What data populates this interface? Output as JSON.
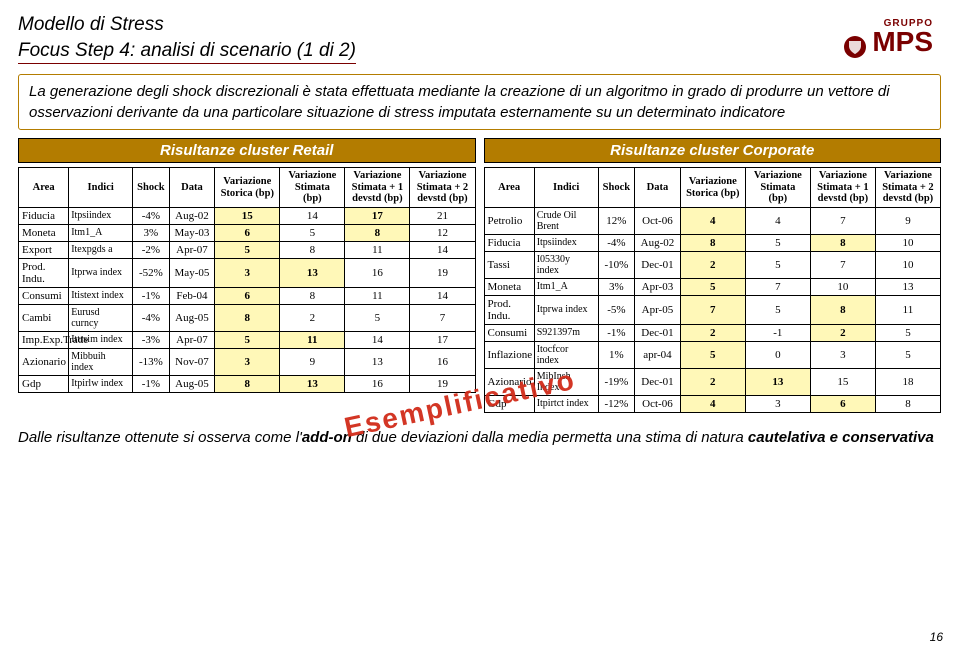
{
  "title_line1": "Modello di Stress",
  "title_line2": "Focus Step 4: analisi di scenario (1 di 2)",
  "logo": {
    "small": "GRUPPO",
    "big": "MPS"
  },
  "description": "La generazione degli shock discrezionali è stata effettuata mediante la creazione di un algoritmo in grado di produrre un vettore di osservazioni derivante da una particolare situazione di stress imputata esternamente su un determinato indicatore",
  "cluster_left_title": "Risultanze cluster Retail",
  "cluster_right_title": "Risultanze cluster Corporate",
  "headers": [
    "Area",
    "Indici",
    "Shock",
    "Data",
    "Variazione Storica (bp)",
    "Variazione Stimata (bp)",
    "Variazione Stimata + 1 devstd (bp)",
    "Variazione Stimata + 2 devstd (bp)"
  ],
  "retail_rows": [
    {
      "area": "Fiducia",
      "indici": "Itpsiindex",
      "shock": "-4%",
      "data": "Aug-02",
      "v": [
        [
          "15",
          true
        ],
        [
          "14",
          false
        ],
        [
          "17",
          true
        ],
        [
          "21",
          false
        ]
      ]
    },
    {
      "area": "Moneta",
      "indici": "Itm1_A",
      "shock": "3%",
      "data": "May-03",
      "v": [
        [
          "6",
          true
        ],
        [
          "5",
          false
        ],
        [
          "8",
          true
        ],
        [
          "12",
          false
        ]
      ]
    },
    {
      "area": "Export",
      "indici": "Itexpgds a",
      "shock": "-2%",
      "data": "Apr-07",
      "v": [
        [
          "5",
          true
        ],
        [
          "8",
          false
        ],
        [
          "11",
          false
        ],
        [
          "14",
          false
        ]
      ]
    },
    {
      "area": "Prod. Indu.",
      "indici": "Itprwa index",
      "shock": "-52%",
      "data": "May-05",
      "v": [
        [
          "3",
          true
        ],
        [
          "13",
          true
        ],
        [
          "16",
          false
        ],
        [
          "19",
          false
        ]
      ]
    },
    {
      "area": "Consumi",
      "indici": "Itistext index",
      "shock": "-1%",
      "data": "Feb-04",
      "v": [
        [
          "6",
          true
        ],
        [
          "8",
          false
        ],
        [
          "11",
          false
        ],
        [
          "14",
          false
        ]
      ]
    },
    {
      "area": "Cambi",
      "indici": "Eurusd\ncurncy",
      "shock": "-4%",
      "data": "Aug-05",
      "v": [
        [
          "8",
          true
        ],
        [
          "2",
          false
        ],
        [
          "5",
          false
        ],
        [
          "7",
          false
        ]
      ]
    },
    {
      "area": "Imp.Exp.Trade",
      "indici": "Ittrsim index",
      "shock": "-3%",
      "data": "Apr-07",
      "v": [
        [
          "5",
          true
        ],
        [
          "11",
          true
        ],
        [
          "14",
          false
        ],
        [
          "17",
          false
        ]
      ]
    },
    {
      "area": "Azionario",
      "indici": "Mibbuih\nindex",
      "shock": "-13%",
      "data": "Nov-07",
      "v": [
        [
          "3",
          true
        ],
        [
          "9",
          false
        ],
        [
          "13",
          false
        ],
        [
          "16",
          false
        ]
      ]
    },
    {
      "area": "Gdp",
      "indici": "Itpirlw index",
      "shock": "-1%",
      "data": "Aug-05",
      "v": [
        [
          "8",
          true
        ],
        [
          "13",
          true
        ],
        [
          "16",
          false
        ],
        [
          "19",
          false
        ]
      ]
    }
  ],
  "corp_rows": [
    {
      "area": "Petrolio",
      "indici": "Crude Oil\nBrent",
      "shock": "12%",
      "data": "Oct-06",
      "v": [
        [
          "4",
          true
        ],
        [
          "4",
          false
        ],
        [
          "7",
          false
        ],
        [
          "9",
          false
        ]
      ]
    },
    {
      "area": "Fiducia",
      "indici": "Itpsiindex",
      "shock": "-4%",
      "data": "Aug-02",
      "v": [
        [
          "8",
          true
        ],
        [
          "5",
          false
        ],
        [
          "8",
          true
        ],
        [
          "10",
          false
        ]
      ]
    },
    {
      "area": "Tassi",
      "indici": "I05330y\nindex",
      "shock": "-10%",
      "data": "Dec-01",
      "v": [
        [
          "2",
          true
        ],
        [
          "5",
          false
        ],
        [
          "7",
          false
        ],
        [
          "10",
          false
        ]
      ]
    },
    {
      "area": "Moneta",
      "indici": "Itm1_A",
      "shock": "3%",
      "data": "Apr-03",
      "v": [
        [
          "5",
          true
        ],
        [
          "7",
          false
        ],
        [
          "10",
          false
        ],
        [
          "13",
          false
        ]
      ]
    },
    {
      "area": "Prod. Indu.",
      "indici": "Itprwa index",
      "shock": "-5%",
      "data": "Apr-05",
      "v": [
        [
          "7",
          true
        ],
        [
          "5",
          false
        ],
        [
          "8",
          true
        ],
        [
          "11",
          false
        ]
      ]
    },
    {
      "area": "Consumi",
      "indici": "S921397m",
      "shock": "-1%",
      "data": "Dec-01",
      "v": [
        [
          "2",
          true
        ],
        [
          "-1",
          false
        ],
        [
          "2",
          true
        ],
        [
          "5",
          false
        ]
      ]
    },
    {
      "area": "Inflazione",
      "indici": "Itocfcor\nindex",
      "shock": "1%",
      "data": "apr-04",
      "v": [
        [
          "5",
          true
        ],
        [
          "0",
          false
        ],
        [
          "3",
          false
        ],
        [
          "5",
          false
        ]
      ]
    },
    {
      "area": "Azionario",
      "indici": "MibInsh\nIndex",
      "shock": "-19%",
      "data": "Dec-01",
      "v": [
        [
          "2",
          true
        ],
        [
          "13",
          true
        ],
        [
          "15",
          false
        ],
        [
          "18",
          false
        ]
      ]
    },
    {
      "area": "Gdp",
      "indici": "Itpirtct index",
      "shock": "-12%",
      "data": "Oct-06",
      "v": [
        [
          "4",
          true
        ],
        [
          "3",
          false
        ],
        [
          "6",
          true
        ],
        [
          "8",
          false
        ]
      ]
    }
  ],
  "watermark": "Esemplificativo",
  "footer_pre": "Dalle risultanze ottenute si osserva come l'",
  "footer_bold1": "add-on",
  "footer_mid": " di due deviazioni dalla media permetta una stima di natura ",
  "footer_bold2": "cautelativa e conservativa",
  "page_num": "16",
  "colors": {
    "accent": "#b37c00",
    "title_underline": "#7a0000",
    "highlight": "#fff8b8",
    "watermark": "#d12c1a",
    "logo": "#7a0000"
  }
}
